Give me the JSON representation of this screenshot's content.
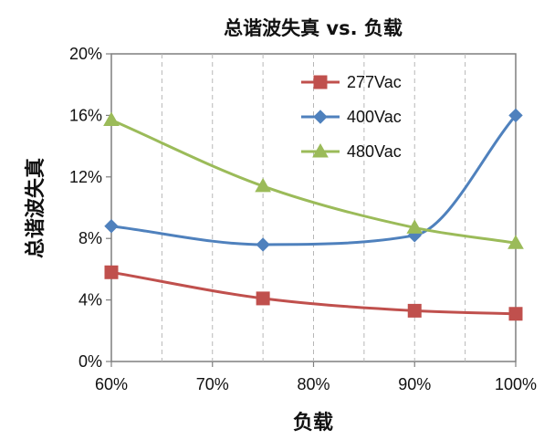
{
  "chart_data": {
    "type": "line",
    "title": "总谐波失真 vs. 负载",
    "xlabel": "负载",
    "ylabel": "总谐波失真",
    "x": [
      60,
      75,
      90,
      100
    ],
    "x_tick_values": [
      60,
      70,
      80,
      90,
      100
    ],
    "x_tick_labels": [
      "60%",
      "70%",
      "80%",
      "90%",
      "100%"
    ],
    "xlim": [
      60,
      100
    ],
    "y_tick_values": [
      0,
      4,
      8,
      12,
      16,
      20
    ],
    "y_tick_labels": [
      "0%",
      "4%",
      "8%",
      "12%",
      "16%",
      "20%"
    ],
    "ylim": [
      0,
      20
    ],
    "grid": "vertical dashed",
    "legend_position": "top-right",
    "series": [
      {
        "name": "277Vac",
        "color": "#c0504d",
        "marker": "square",
        "values": [
          5.8,
          4.1,
          3.3,
          3.1
        ]
      },
      {
        "name": "400Vac",
        "color": "#4f81bd",
        "marker": "diamond",
        "values": [
          8.8,
          7.6,
          8.2,
          16.0
        ]
      },
      {
        "name": "480Vac",
        "color": "#9bbb59",
        "marker": "triangle",
        "values": [
          15.7,
          11.4,
          8.7,
          7.7
        ]
      }
    ]
  }
}
